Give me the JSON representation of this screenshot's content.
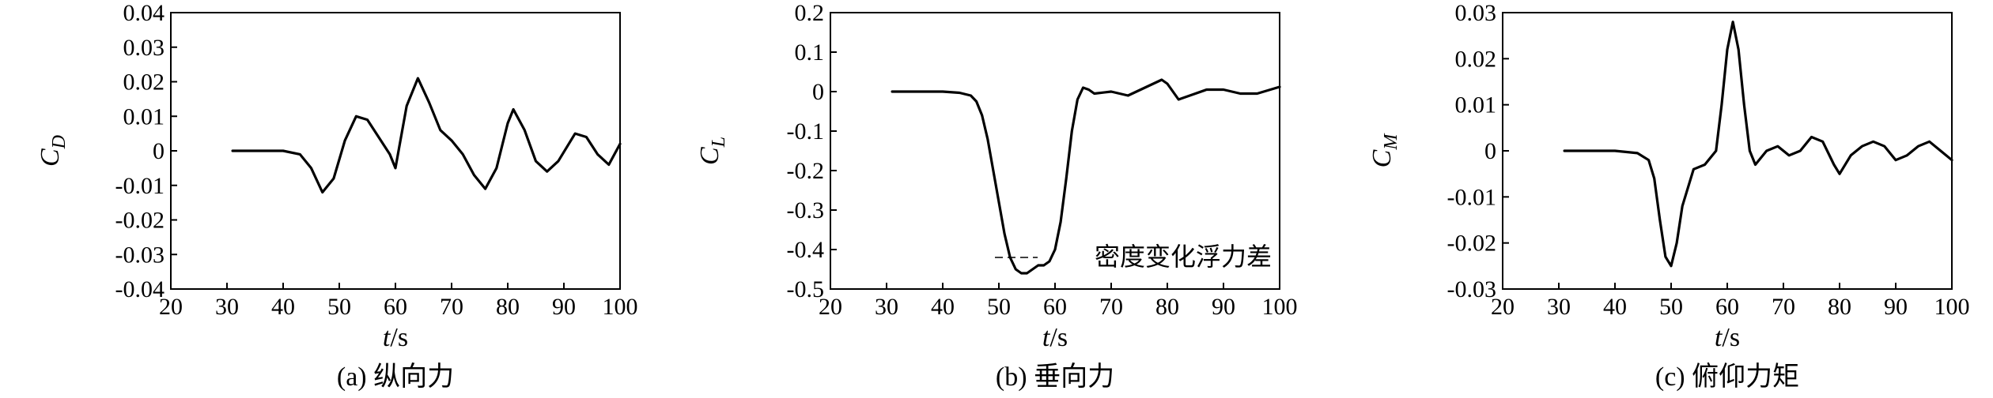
{
  "chart_data": [
    {
      "type": "line",
      "caption": "(a) 纵向力",
      "ylabel_main": "C",
      "ylabel_sub": "D",
      "xlabel_main": "t",
      "xlabel_rest": "/s",
      "xlim": [
        20,
        100
      ],
      "ylim": [
        -0.04,
        0.04
      ],
      "xticks": [
        "20",
        "30",
        "40",
        "50",
        "60",
        "70",
        "80",
        "90",
        "100"
      ],
      "yticks": [
        "0.04",
        "0.03",
        "0.02",
        "0.01",
        "0",
        "-0.01",
        "-0.02",
        "-0.03",
        "-0.04"
      ],
      "series": [
        {
          "x": [
            31,
            35,
            40,
            43,
            45,
            47,
            49,
            51,
            53,
            55,
            57,
            59,
            60,
            61,
            62,
            64,
            66,
            68,
            70,
            72,
            74,
            76,
            78,
            80,
            81,
            83,
            85,
            87,
            89,
            92,
            94,
            96,
            98,
            100
          ],
          "y": [
            0,
            0,
            0,
            -0.001,
            -0.005,
            -0.012,
            -0.008,
            0.003,
            0.01,
            0.009,
            0.004,
            -0.001,
            -0.005,
            0.004,
            0.013,
            0.021,
            0.014,
            0.006,
            0.003,
            -0.001,
            -0.007,
            -0.011,
            -0.005,
            0.008,
            0.012,
            0.006,
            -0.003,
            -0.006,
            -0.003,
            0.005,
            0.004,
            -0.001,
            -0.004,
            0.002
          ]
        }
      ]
    },
    {
      "type": "line",
      "caption": "(b) 垂向力",
      "ylabel_main": "C",
      "ylabel_sub": "L",
      "xlabel_main": "t",
      "xlabel_rest": "/s",
      "xlim": [
        20,
        100
      ],
      "ylim": [
        -0.5,
        0.2
      ],
      "xticks": [
        "20",
        "30",
        "40",
        "50",
        "60",
        "70",
        "80",
        "90",
        "100"
      ],
      "yticks": [
        "0.2",
        "0.1",
        "0",
        "-0.1",
        "-0.2",
        "-0.3",
        "-0.4",
        "-0.5"
      ],
      "legend": [
        {
          "label": "密度变化浮力差"
        }
      ],
      "series": [
        {
          "x": [
            31,
            35,
            40,
            43,
            45,
            46,
            47,
            48,
            49,
            50,
            51,
            52,
            53,
            54,
            55,
            56,
            57,
            58,
            59,
            60,
            61,
            62,
            63,
            64,
            65,
            66,
            67,
            70,
            73,
            76,
            79,
            80,
            82,
            84,
            87,
            90,
            93,
            96,
            100
          ],
          "y": [
            0,
            0,
            0,
            -0.003,
            -0.01,
            -0.025,
            -0.06,
            -0.12,
            -0.2,
            -0.28,
            -0.36,
            -0.42,
            -0.45,
            -0.46,
            -0.46,
            -0.45,
            -0.44,
            -0.44,
            -0.43,
            -0.4,
            -0.33,
            -0.22,
            -0.1,
            -0.02,
            0.01,
            0.005,
            -0.005,
            0,
            -0.01,
            0.01,
            0.03,
            0.02,
            -0.02,
            -0.01,
            0.005,
            0.005,
            -0.005,
            -0.005,
            0.012
          ]
        }
      ]
    },
    {
      "type": "line",
      "caption": "(c) 俯仰力矩",
      "ylabel_main": "C",
      "ylabel_sub": "M",
      "xlabel_main": "t",
      "xlabel_rest": "/s",
      "xlim": [
        20,
        100
      ],
      "ylim": [
        -0.03,
        0.03
      ],
      "xticks": [
        "20",
        "30",
        "40",
        "50",
        "60",
        "70",
        "80",
        "90",
        "100"
      ],
      "yticks": [
        "0.03",
        "0.02",
        "0.01",
        "0",
        "-0.01",
        "-0.02",
        "-0.03"
      ],
      "series": [
        {
          "x": [
            31,
            35,
            40,
            44,
            46,
            47,
            48,
            49,
            50,
            51,
            52,
            54,
            56,
            58,
            59,
            60,
            61,
            62,
            63,
            64,
            65,
            67,
            69,
            71,
            73,
            75,
            77,
            79,
            80,
            82,
            84,
            86,
            88,
            90,
            92,
            94,
            96,
            98,
            100
          ],
          "y": [
            0,
            0,
            0,
            -0.0005,
            -0.002,
            -0.006,
            -0.015,
            -0.023,
            -0.025,
            -0.02,
            -0.012,
            -0.004,
            -0.003,
            0,
            0.01,
            0.022,
            0.028,
            0.022,
            0.01,
            0,
            -0.003,
            0,
            0.001,
            -0.001,
            0,
            0.003,
            0.002,
            -0.003,
            -0.005,
            -0.001,
            0.001,
            0.002,
            0.001,
            -0.002,
            -0.001,
            0.001,
            0.002,
            0,
            -0.002
          ]
        }
      ]
    }
  ]
}
